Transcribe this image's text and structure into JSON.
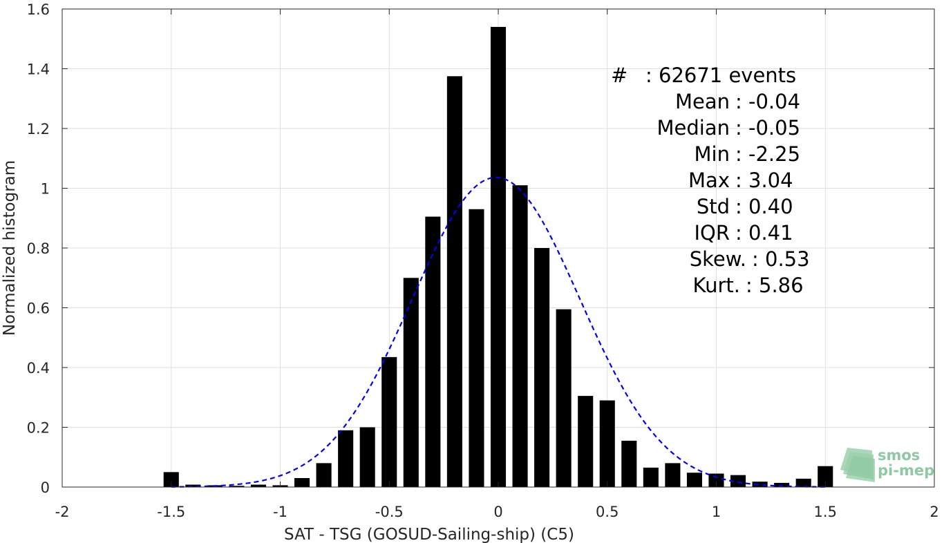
{
  "chart_data": {
    "type": "bar",
    "title": "",
    "xlabel": "SAT - TSG (GOSUD-Sailing-ship) (C5)",
    "ylabel": "Normalized histogram",
    "xlim": [
      -2,
      2
    ],
    "ylim": [
      0,
      1.6
    ],
    "grid": true,
    "bin_width": 0.1,
    "xticks": [
      -2,
      -1.5,
      -1,
      -0.5,
      0,
      0.5,
      1,
      1.5,
      2
    ],
    "xtick_labels": [
      "-2",
      "-1.5",
      "-1",
      "-0.5",
      "0",
      "0.5",
      "1",
      "1.5",
      "2"
    ],
    "yticks": [
      0,
      0.2,
      0.4,
      0.6,
      0.8,
      1,
      1.2,
      1.4,
      1.6
    ],
    "ytick_labels": [
      "0",
      "0.2",
      "0.4",
      "0.6",
      "0.8",
      "1",
      "1.2",
      "1.4",
      "1.6"
    ],
    "bar_color": "#000000",
    "bars": [
      {
        "x": -1.5,
        "y": 0.05
      },
      {
        "x": -1.4,
        "y": 0.008
      },
      {
        "x": -1.3,
        "y": 0.006
      },
      {
        "x": -1.2,
        "y": 0.004
      },
      {
        "x": -1.1,
        "y": 0.008
      },
      {
        "x": -1.0,
        "y": 0.006
      },
      {
        "x": -0.9,
        "y": 0.03
      },
      {
        "x": -0.8,
        "y": 0.08
      },
      {
        "x": -0.7,
        "y": 0.19
      },
      {
        "x": -0.6,
        "y": 0.2
      },
      {
        "x": -0.5,
        "y": 0.435
      },
      {
        "x": -0.4,
        "y": 0.7
      },
      {
        "x": -0.3,
        "y": 0.905
      },
      {
        "x": -0.2,
        "y": 1.375
      },
      {
        "x": -0.1,
        "y": 0.93
      },
      {
        "x": 0.0,
        "y": 1.54
      },
      {
        "x": 0.1,
        "y": 1.01
      },
      {
        "x": 0.2,
        "y": 0.8
      },
      {
        "x": 0.3,
        "y": 0.595
      },
      {
        "x": 0.4,
        "y": 0.305
      },
      {
        "x": 0.5,
        "y": 0.29
      },
      {
        "x": 0.6,
        "y": 0.155
      },
      {
        "x": 0.7,
        "y": 0.065
      },
      {
        "x": 0.8,
        "y": 0.08
      },
      {
        "x": 0.9,
        "y": 0.048
      },
      {
        "x": 1.0,
        "y": 0.045
      },
      {
        "x": 1.1,
        "y": 0.04
      },
      {
        "x": 1.2,
        "y": 0.018
      },
      {
        "x": 1.3,
        "y": 0.014
      },
      {
        "x": 1.4,
        "y": 0.028
      },
      {
        "x": 1.5,
        "y": 0.07
      }
    ],
    "fit_curve": {
      "type": "gaussian",
      "mean": -0.01,
      "std": 0.385,
      "x_range": [
        -1.5,
        1.5
      ],
      "color": "#0000ff",
      "style": "dashed"
    },
    "stats": [
      {
        "label": "#",
        "value": ": 62671 events"
      },
      {
        "label": "Mean",
        "value": ": -0.04"
      },
      {
        "label": "Median",
        "value": ": -0.05"
      },
      {
        "label": "Min",
        "value": ": -2.25"
      },
      {
        "label": "Max",
        "value": ": 3.04"
      },
      {
        "label": "Std",
        "value": ": 0.40"
      },
      {
        "label": "IQR",
        "value": ": 0.41"
      },
      {
        "label": "Skew.",
        "value": ": 0.53"
      },
      {
        "label": "Kurt.",
        "value": ": 5.86"
      }
    ]
  },
  "logo": {
    "line1": "smos",
    "line2": "pi-mep",
    "color": "#8fc9a3"
  }
}
